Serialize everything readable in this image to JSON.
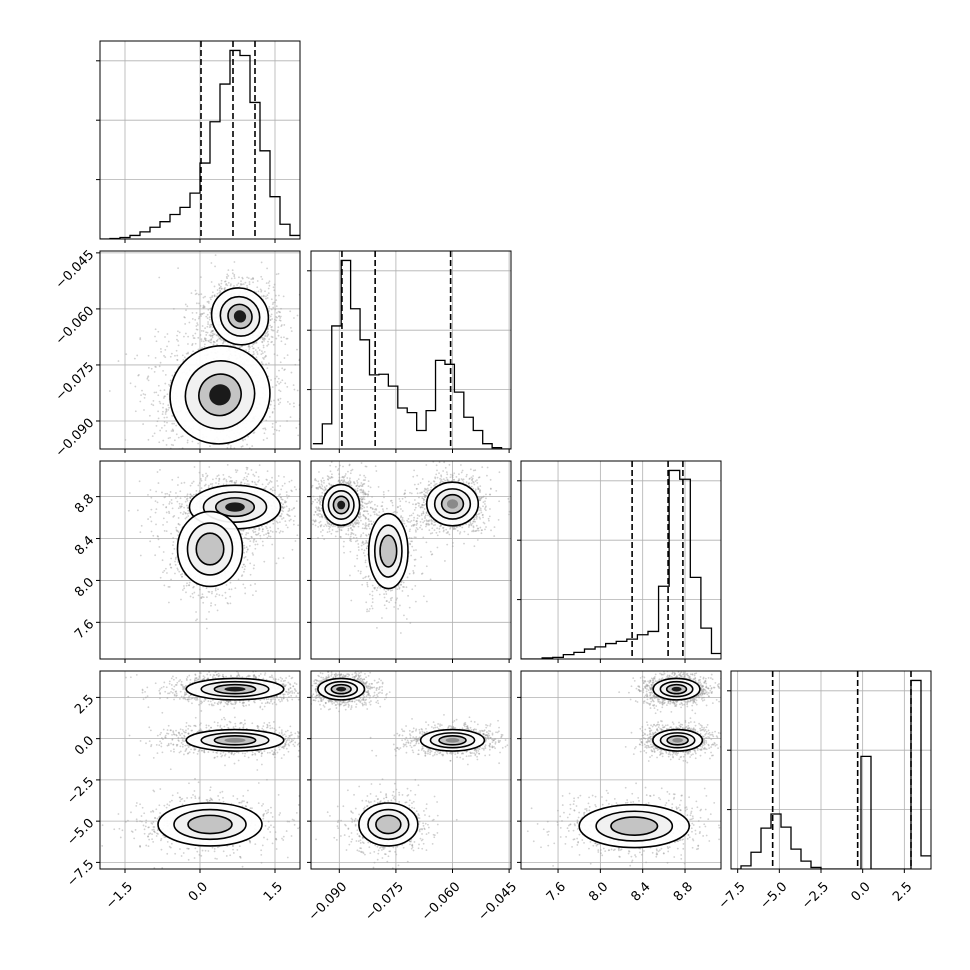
{
  "chart_data": {
    "type": "corner",
    "title": "",
    "parameters": [
      "",
      "",
      "",
      ""
    ],
    "grid": true,
    "colors": {
      "hist": "#000000",
      "contour": "#000000",
      "points": "#9a9a9a",
      "grid": "#b0b0b0",
      "density_core": "#1a1a1a"
    },
    "ranges": [
      [
        -2.0,
        2.0
      ],
      [
        -0.0975,
        -0.0445
      ],
      [
        7.25,
        9.14
      ],
      [
        -7.9,
        4.1
      ]
    ],
    "x_ticks": [
      {
        "value": -1.5,
        "label": "−1.5"
      },
      {
        "value": 0.0,
        "label": "0.0"
      },
      {
        "value": 1.5,
        "label": "1.5"
      }
    ],
    "x_ticks_2": [
      {
        "value": -0.09,
        "label": "−0.090"
      },
      {
        "value": -0.075,
        "label": "−0.075"
      },
      {
        "value": -0.06,
        "label": "−0.060"
      },
      {
        "value": -0.045,
        "label": "−0.045"
      }
    ],
    "x_ticks_3": [
      {
        "value": 7.6,
        "label": "7.6"
      },
      {
        "value": 8.0,
        "label": "8.0"
      },
      {
        "value": 8.4,
        "label": "8.4"
      },
      {
        "value": 8.8,
        "label": "8.8"
      }
    ],
    "x_ticks_4": [
      {
        "value": -7.5,
        "label": "−7.5"
      },
      {
        "value": -5.0,
        "label": "−5.0"
      },
      {
        "value": -2.5,
        "label": "−2.5"
      },
      {
        "value": 0.0,
        "label": "0.0"
      },
      {
        "value": 2.5,
        "label": "2.5"
      }
    ],
    "y_ticks_2": [
      {
        "value": -0.045,
        "label": "−0.045"
      },
      {
        "value": -0.06,
        "label": "−0.060"
      },
      {
        "value": -0.075,
        "label": "−0.075"
      },
      {
        "value": -0.09,
        "label": "−0.090"
      }
    ],
    "y_ticks_3": [
      {
        "value": 8.8,
        "label": "8.8"
      },
      {
        "value": 8.4,
        "label": "8.4"
      },
      {
        "value": 8.0,
        "label": "8.0"
      },
      {
        "value": 7.6,
        "label": "7.6"
      }
    ],
    "y_ticks_4": [
      {
        "value": 2.5,
        "label": "2.5"
      },
      {
        "value": 0.0,
        "label": "0.0"
      },
      {
        "value": -2.5,
        "label": "−2.5"
      },
      {
        "value": -5.0,
        "label": "−5.0"
      },
      {
        "value": -7.5,
        "label": "−7.5"
      }
    ],
    "histograms": [
      {
        "bin_edges": [
          -2.0,
          -1.8,
          -1.6,
          -1.4,
          -1.2,
          -1.0,
          -0.8,
          -0.6,
          -0.4,
          -0.2,
          0.0,
          0.2,
          0.4,
          0.6,
          0.8,
          1.0,
          1.2,
          1.4,
          1.6,
          1.8,
          2.0
        ],
        "counts": [
          0,
          1,
          3,
          7,
          14,
          23,
          34,
          48,
          62,
          90,
          149,
          230,
          304,
          370,
          360,
          268,
          173,
          83,
          29,
          7
        ],
        "quantiles": [
          0.02,
          0.66,
          1.1
        ]
      },
      {
        "bin_edges": [
          -0.097,
          -0.0945,
          -0.092,
          -0.0895,
          -0.087,
          -0.0845,
          -0.082,
          -0.0795,
          -0.077,
          -0.0745,
          -0.072,
          -0.0695,
          -0.067,
          -0.0645,
          -0.062,
          -0.0595,
          -0.057,
          -0.0545,
          -0.052,
          -0.0495,
          -0.047,
          -0.0445
        ],
        "counts": [
          8,
          38,
          186,
          285,
          212,
          165,
          112,
          113,
          95,
          62,
          55,
          28,
          58,
          134,
          128,
          86,
          48,
          28,
          8,
          2,
          0
        ],
        "quantiles": [
          -0.0893,
          -0.0805,
          -0.0605
        ]
      },
      {
        "bin_edges": [
          7.25,
          7.35,
          7.45,
          7.55,
          7.65,
          7.75,
          7.85,
          7.95,
          8.05,
          8.15,
          8.25,
          8.35,
          8.45,
          8.55,
          8.65,
          8.75,
          8.85,
          8.95,
          9.05,
          9.14
        ],
        "counts": [
          0,
          0,
          2,
          3,
          8,
          12,
          18,
          22,
          28,
          32,
          36,
          44,
          50,
          132,
          342,
          326,
          148,
          56,
          10
        ],
        "quantiles": [
          8.3,
          8.64,
          8.78
        ]
      },
      {
        "bin_edges": [
          -7.9,
          -7.3,
          -6.7,
          -6.1,
          -5.5,
          -4.9,
          -4.3,
          -3.7,
          -3.1,
          -2.5,
          -1.9,
          -1.3,
          -0.7,
          -0.1,
          0.5,
          1.1,
          1.7,
          2.3,
          2.9,
          3.5,
          4.1
        ],
        "counts": [
          0,
          6,
          32,
          78,
          105,
          80,
          38,
          15,
          3,
          0,
          0,
          0,
          0,
          215,
          0,
          0,
          0,
          0,
          360,
          25
        ],
        "quantiles": [
          -5.4,
          -0.3,
          2.9
        ]
      }
    ],
    "pairs": [
      {
        "row": 1,
        "col": 0,
        "modes": [
          {
            "x": 0.8,
            "y": -0.062,
            "w": 0.85,
            "h": 0.012,
            "rot": -45,
            "peak": 0.95
          },
          {
            "x": 0.4,
            "y": -0.083,
            "w": 1.55,
            "h": 0.02,
            "rot": -30,
            "peak": 1.0
          }
        ]
      },
      {
        "row": 2,
        "col": 0,
        "modes": [
          {
            "x": 0.7,
            "y": 8.7,
            "w": 1.4,
            "h": 0.32,
            "rot": 0,
            "peak": 1.0
          },
          {
            "x": 0.2,
            "y": 8.3,
            "w": 1.0,
            "h": 0.55,
            "rot": 0,
            "peak": 0.45
          }
        ]
      },
      {
        "row": 2,
        "col": 1,
        "modes": [
          {
            "x": -0.0895,
            "y": 8.72,
            "w": 0.0075,
            "h": 0.3,
            "rot": 0,
            "peak": 1.0
          },
          {
            "x": -0.06,
            "y": 8.73,
            "w": 0.0105,
            "h": 0.32,
            "rot": 0,
            "peak": 0.9
          },
          {
            "x": -0.077,
            "y": 8.28,
            "w": 0.008,
            "h": 0.55,
            "rot": 0,
            "peak": 0.45
          }
        ]
      },
      {
        "row": 3,
        "col": 0,
        "modes": [
          {
            "x": 0.7,
            "y": 3.0,
            "w": 1.5,
            "h": 1.0,
            "rot": 0,
            "peak": 1.0
          },
          {
            "x": 0.7,
            "y": -0.1,
            "w": 1.5,
            "h": 1.0,
            "rot": 0,
            "peak": 0.8
          },
          {
            "x": 0.2,
            "y": -5.2,
            "w": 1.6,
            "h": 2.0,
            "rot": 0,
            "peak": 0.5
          }
        ]
      },
      {
        "row": 3,
        "col": 1,
        "modes": [
          {
            "x": -0.0895,
            "y": 3.0,
            "w": 0.0095,
            "h": 1.0,
            "rot": 0,
            "peak": 1.0
          },
          {
            "x": -0.06,
            "y": -0.1,
            "w": 0.013,
            "h": 1.0,
            "rot": 0,
            "peak": 0.85
          },
          {
            "x": -0.077,
            "y": -5.2,
            "w": 0.012,
            "h": 2.0,
            "rot": 0,
            "peak": 0.5
          }
        ]
      },
      {
        "row": 3,
        "col": 2,
        "modes": [
          {
            "x": 8.72,
            "y": 3.0,
            "w": 0.34,
            "h": 1.0,
            "rot": 0,
            "peak": 1.0
          },
          {
            "x": 8.73,
            "y": -0.1,
            "w": 0.36,
            "h": 1.0,
            "rot": 0,
            "peak": 0.85
          },
          {
            "x": 8.32,
            "y": -5.3,
            "w": 0.8,
            "h": 2.0,
            "rot": 0,
            "peak": 0.55
          }
        ]
      }
    ]
  }
}
